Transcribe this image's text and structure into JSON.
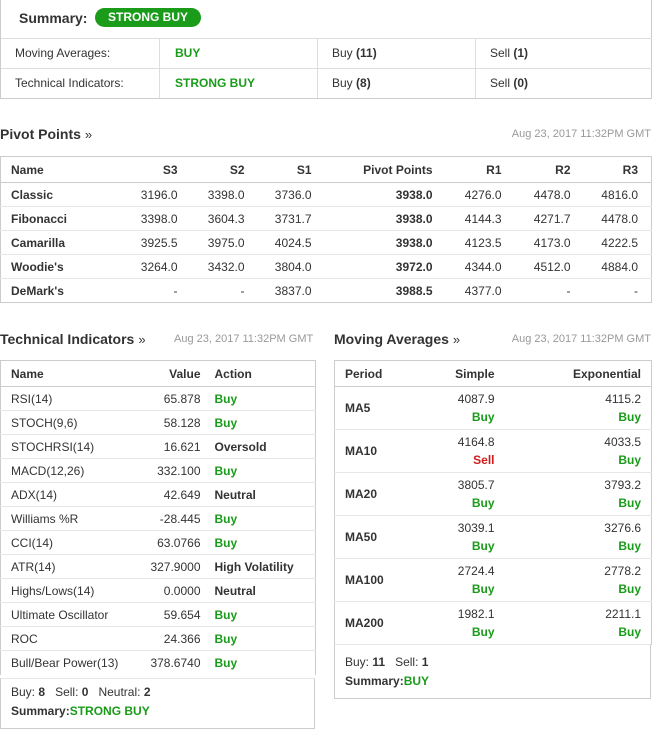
{
  "summary": {
    "label": "Summary:",
    "badge": "STRONG BUY",
    "rows": [
      {
        "name": "Moving Averages:",
        "signal": "BUY",
        "buy_label": "Buy",
        "buy_count": "(11)",
        "sell_label": "Sell",
        "sell_count": "(1)"
      },
      {
        "name": "Technical Indicators:",
        "signal": "STRONG BUY",
        "buy_label": "Buy",
        "buy_count": "(8)",
        "sell_label": "Sell",
        "sell_count": "(0)"
      }
    ]
  },
  "pivot": {
    "title": "Pivot Points",
    "arrow": "»",
    "timestamp": "Aug 23, 2017 11:32PM GMT",
    "headers": [
      "Name",
      "S3",
      "S2",
      "S1",
      "Pivot Points",
      "R1",
      "R2",
      "R3"
    ],
    "rows": [
      [
        "Classic",
        "3196.0",
        "3398.0",
        "3736.0",
        "3938.0",
        "4276.0",
        "4478.0",
        "4816.0"
      ],
      [
        "Fibonacci",
        "3398.0",
        "3604.3",
        "3731.7",
        "3938.0",
        "4144.3",
        "4271.7",
        "4478.0"
      ],
      [
        "Camarilla",
        "3925.5",
        "3975.0",
        "4024.5",
        "3938.0",
        "4123.5",
        "4173.0",
        "4222.5"
      ],
      [
        "Woodie's",
        "3264.0",
        "3432.0",
        "3804.0",
        "3972.0",
        "4344.0",
        "4512.0",
        "4884.0"
      ],
      [
        "DeMark's",
        "-",
        "-",
        "3837.0",
        "3988.5",
        "4377.0",
        "-",
        "-"
      ]
    ]
  },
  "technical": {
    "title": "Technical Indicators",
    "arrow": "»",
    "timestamp": "Aug 23, 2017 11:32PM GMT",
    "headers": [
      "Name",
      "Value",
      "Action"
    ],
    "rows": [
      {
        "name": "RSI(14)",
        "value": "65.878",
        "action": "Buy",
        "tone": "green"
      },
      {
        "name": "STOCH(9,6)",
        "value": "58.128",
        "action": "Buy",
        "tone": "green"
      },
      {
        "name": "STOCHRSI(14)",
        "value": "16.621",
        "action": "Oversold",
        "tone": "neutral"
      },
      {
        "name": "MACD(12,26)",
        "value": "332.100",
        "action": "Buy",
        "tone": "green"
      },
      {
        "name": "ADX(14)",
        "value": "42.649",
        "action": "Neutral",
        "tone": "neutral"
      },
      {
        "name": "Williams %R",
        "value": "-28.445",
        "action": "Buy",
        "tone": "green"
      },
      {
        "name": "CCI(14)",
        "value": "63.0766",
        "action": "Buy",
        "tone": "green"
      },
      {
        "name": "ATR(14)",
        "value": "327.9000",
        "action": "High Volatility",
        "tone": "neutral"
      },
      {
        "name": "Highs/Lows(14)",
        "value": "0.0000",
        "action": "Neutral",
        "tone": "neutral"
      },
      {
        "name": "Ultimate Oscillator",
        "value": "59.654",
        "action": "Buy",
        "tone": "green"
      },
      {
        "name": "ROC",
        "value": "24.366",
        "action": "Buy",
        "tone": "green"
      },
      {
        "name": "Bull/Bear Power(13)",
        "value": "378.6740",
        "action": "Buy",
        "tone": "green"
      }
    ],
    "footer": {
      "buy_label": "Buy:",
      "buy": "8",
      "sell_label": "Sell:",
      "sell": "0",
      "neutral_label": "Neutral:",
      "neutral": "2",
      "summary_label": "Summary:",
      "summary": "STRONG BUY"
    }
  },
  "moving": {
    "title": "Moving Averages",
    "arrow": "»",
    "timestamp": "Aug 23, 2017 11:32PM GMT",
    "headers": [
      "Period",
      "Simple",
      "Exponential"
    ],
    "rows": [
      {
        "period": "MA5",
        "simple": "4087.9",
        "simple_sig": "Buy",
        "simple_tone": "green",
        "exp": "4115.2",
        "exp_sig": "Buy",
        "exp_tone": "green"
      },
      {
        "period": "MA10",
        "simple": "4164.8",
        "simple_sig": "Sell",
        "simple_tone": "red",
        "exp": "4033.5",
        "exp_sig": "Buy",
        "exp_tone": "green"
      },
      {
        "period": "MA20",
        "simple": "3805.7",
        "simple_sig": "Buy",
        "simple_tone": "green",
        "exp": "3793.2",
        "exp_sig": "Buy",
        "exp_tone": "green"
      },
      {
        "period": "MA50",
        "simple": "3039.1",
        "simple_sig": "Buy",
        "simple_tone": "green",
        "exp": "3276.6",
        "exp_sig": "Buy",
        "exp_tone": "green"
      },
      {
        "period": "MA100",
        "simple": "2724.4",
        "simple_sig": "Buy",
        "simple_tone": "green",
        "exp": "2778.2",
        "exp_sig": "Buy",
        "exp_tone": "green"
      },
      {
        "period": "MA200",
        "simple": "1982.1",
        "simple_sig": "Buy",
        "simple_tone": "green",
        "exp": "2211.1",
        "exp_sig": "Buy",
        "exp_tone": "green"
      }
    ],
    "footer": {
      "buy_label": "Buy:",
      "buy": "11",
      "sell_label": "Sell:",
      "sell": "1",
      "summary_label": "Summary:",
      "summary": "BUY"
    }
  },
  "colors": {
    "buy": "#1a9b1a",
    "sell": "#d31b1b",
    "border": "#cccccc"
  }
}
